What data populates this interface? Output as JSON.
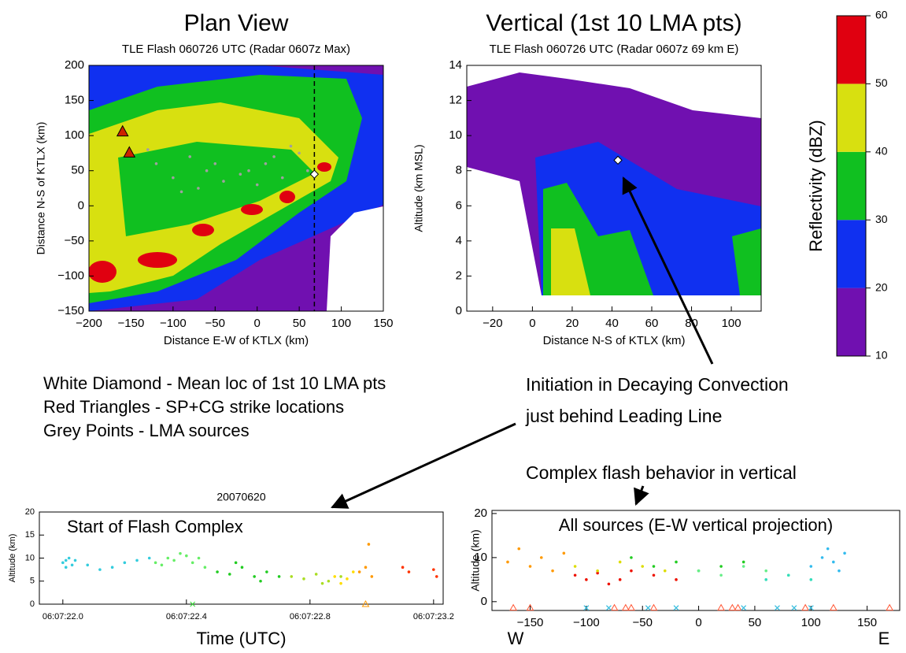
{
  "chart_data": [
    {
      "type": "contour",
      "title": "Plan View",
      "subtitle": "TLE Flash 060726 UTC (Radar 0607z Max)",
      "xlabel": "Distance E-W of KTLX (km)",
      "ylabel": "Distance N-S of KTLX (km)",
      "xlim": [
        -200,
        150
      ],
      "ylim": [
        -150,
        200
      ],
      "xticks": [
        {
          "value": -200,
          "label": "−200"
        },
        {
          "value": -150,
          "label": "−150"
        },
        {
          "value": -100,
          "label": "−100"
        },
        {
          "value": -50,
          "label": "−50"
        },
        0,
        50,
        100,
        150
      ],
      "yticks": [
        {
          "value": -150,
          "label": "−150"
        },
        {
          "value": -100,
          "label": "−100"
        },
        {
          "value": -50,
          "label": "−50"
        },
        0,
        50,
        100,
        150,
        200
      ],
      "section_x": 68,
      "legend": true,
      "series": [
        {
          "name": "White Diamond - Mean loc of 1st 10 LMA pts",
          "color": "#ffffff",
          "marker": "diamond",
          "x": [
            68
          ],
          "values": [
            45
          ]
        },
        {
          "name": "Red Triangles - SP+CG strike locations",
          "color": "#cc2200",
          "marker": "triangle",
          "x": [
            -160,
            -152
          ],
          "values": [
            105,
            75
          ]
        },
        {
          "name": "Grey Points - LMA sources",
          "color": "#a0a0a0",
          "marker": "dot",
          "x": [
            -120,
            -100,
            -80,
            -60,
            -40,
            -20,
            0,
            20,
            40,
            -90,
            -50,
            -10,
            30,
            -130,
            -70,
            10,
            50,
            60
          ],
          "values": [
            60,
            40,
            70,
            50,
            35,
            45,
            30,
            70,
            85,
            20,
            60,
            50,
            40,
            80,
            25,
            60,
            75,
            50
          ]
        }
      ]
    },
    {
      "type": "contour",
      "title": "Vertical (1st 10 LMA pts)",
      "subtitle": "TLE Flash 060726 UTC (Radar 0607z 69 km E)",
      "xlabel": "Distance N-S of KTLX (km)",
      "ylabel": "Altitude (km MSL)",
      "xlim": [
        -33,
        115
      ],
      "ylim": [
        0,
        14
      ],
      "xticks": [
        {
          "value": -20,
          "label": "−20"
        },
        0,
        20,
        40,
        60,
        80,
        100
      ],
      "yticks": [
        0,
        2,
        4,
        6,
        8,
        10,
        12,
        14
      ],
      "series": [
        {
          "color": "#ffffff",
          "marker": "diamond",
          "x": [
            43
          ],
          "values": [
            8.6
          ]
        }
      ]
    },
    {
      "type": "colorbar",
      "label": "Reflectivity (dBZ)",
      "ylim": [
        10,
        60
      ],
      "yticks": [
        10,
        20,
        30,
        40,
        50,
        60
      ],
      "bins": [
        10,
        20,
        30,
        40,
        50,
        60
      ],
      "colors": [
        "#7010b0",
        "#1030f0",
        "#10c020",
        "#d8e010",
        "#e00010"
      ]
    },
    {
      "type": "scatter",
      "title": "20070620",
      "annotation": "Start of Flash Complex",
      "xlabel": "Time (UTC)",
      "ylabel": "Altitude (km)",
      "xlim": [
        21.924,
        23.231
      ],
      "ylim": [
        0,
        20
      ],
      "xticks": [
        {
          "value": 22.0,
          "label": "06:07:22.0"
        },
        {
          "value": 22.4,
          "label": "06:07:22.4"
        },
        {
          "value": 22.8,
          "label": "06:07:22.8"
        },
        {
          "value": 23.2,
          "label": "06:07:23.2"
        }
      ],
      "yticks": [
        0,
        5,
        10,
        15,
        20
      ],
      "series": [
        {
          "color": "#33ccdd",
          "marker": "dot",
          "x": [
            22.0,
            22.01,
            22.02,
            22.04,
            22.08,
            22.12,
            22.16,
            22.2,
            22.24,
            22.28,
            22.01,
            22.03
          ],
          "values": [
            9,
            8,
            10,
            9.5,
            8.5,
            7.5,
            8,
            9,
            9.5,
            10,
            9.5,
            8.5
          ]
        },
        {
          "color": "#66ee66",
          "marker": "dot",
          "x": [
            22.3,
            22.34,
            22.38,
            22.4,
            22.42,
            22.44,
            22.46,
            22.36,
            22.32
          ],
          "values": [
            9,
            10,
            11,
            10.5,
            9,
            10,
            8,
            9.5,
            8.5
          ]
        },
        {
          "color": "#22cc22",
          "marker": "dot",
          "x": [
            22.5,
            22.54,
            22.58,
            22.62,
            22.66,
            22.7,
            22.56,
            22.64
          ],
          "values": [
            7,
            6.5,
            8,
            6,
            7,
            6,
            9,
            5
          ]
        },
        {
          "color": "#aadd22",
          "marker": "dot",
          "x": [
            22.74,
            22.78,
            22.82,
            22.86,
            22.9,
            22.84
          ],
          "values": [
            6,
            5.5,
            6.5,
            5,
            6,
            4.5
          ]
        },
        {
          "color": "#ffdd00",
          "marker": "dot",
          "x": [
            22.88,
            22.92,
            22.94,
            22.9
          ],
          "values": [
            6,
            5.5,
            7,
            4.5
          ]
        },
        {
          "color": "#ff9900",
          "marker": "dot",
          "x": [
            22.96,
            22.98,
            23.0,
            22.99
          ],
          "values": [
            7,
            8,
            6,
            13
          ]
        },
        {
          "color": "#ff3300",
          "marker": "dot",
          "x": [
            23.1,
            23.12,
            23.2,
            23.21
          ],
          "values": [
            8,
            7,
            7.5,
            6
          ]
        },
        {
          "color": "#44dd44",
          "marker": "x",
          "x": [
            22.42
          ],
          "values": [
            0
          ]
        },
        {
          "color": "#ff9900",
          "marker": "triangle-open",
          "x": [
            22.98
          ],
          "values": [
            0
          ]
        }
      ]
    },
    {
      "type": "scatter",
      "annotation": "All sources (E-W vertical projection)",
      "ylabel": "Altitude (km)",
      "west": "W",
      "east": "E",
      "xlim": [
        -184,
        179
      ],
      "ylim": [
        -2,
        20.7
      ],
      "xticks": [
        {
          "value": -150,
          "label": "−150"
        },
        {
          "value": -100,
          "label": "−100"
        },
        {
          "value": -50,
          "label": "−50"
        },
        0,
        50,
        100,
        150
      ],
      "yticks": [
        0,
        10,
        20
      ],
      "series": [
        {
          "color": "#ff9900",
          "marker": "dot",
          "x": [
            -170,
            -160,
            -150,
            -140,
            -130,
            -120
          ],
          "values": [
            9,
            12,
            8,
            10,
            7,
            11
          ]
        },
        {
          "color": "#ee1100",
          "marker": "dot",
          "x": [
            -110,
            -100,
            -90,
            -80,
            -70,
            -60,
            -40,
            -20
          ],
          "values": [
            6,
            5,
            6.5,
            4,
            5,
            7,
            6,
            5
          ]
        },
        {
          "color": "#dddd00",
          "marker": "dot",
          "x": [
            -110,
            -90,
            -70,
            -50,
            -30
          ],
          "values": [
            8,
            7,
            9,
            8,
            7
          ]
        },
        {
          "color": "#22cc22",
          "marker": "dot",
          "x": [
            -60,
            -40,
            -20,
            0,
            20,
            40
          ],
          "values": [
            10,
            8,
            9,
            7,
            8,
            9
          ]
        },
        {
          "color": "#66ee88",
          "marker": "dot",
          "x": [
            0,
            20,
            40,
            60,
            80
          ],
          "values": [
            7,
            6,
            8,
            7,
            6
          ]
        },
        {
          "color": "#33ddbb",
          "marker": "dot",
          "x": [
            60,
            80,
            100
          ],
          "values": [
            5,
            6,
            5
          ]
        },
        {
          "color": "#33bbee",
          "marker": "dot",
          "x": [
            100,
            110,
            115,
            120,
            125,
            130
          ],
          "values": [
            8,
            10,
            12,
            9,
            7,
            11
          ]
        },
        {
          "color": "#ff5533",
          "marker": "triangle-open",
          "x": [
            -165,
            -150,
            -75,
            -65,
            -60,
            -40,
            20,
            30,
            35,
            95,
            120,
            170
          ],
          "values": [
            -1.4,
            -1.4,
            -1.4,
            -1.4,
            -1.4,
            -1.4,
            -1.4,
            -1.4,
            -1.4,
            -1.4,
            -1.4,
            -1.4
          ]
        },
        {
          "color": "#33bbdd",
          "marker": "x",
          "x": [
            -100,
            -80,
            -45,
            -20,
            40,
            70,
            85,
            100
          ],
          "values": [
            -1.4,
            -1.4,
            -1.4,
            -1.4,
            -1.4,
            -1.4,
            -1.4,
            -1.4
          ]
        }
      ]
    }
  ],
  "annotations": {
    "initiation": [
      "Initiation in Decaying Convection",
      "just behind Leading Line"
    ],
    "complex": "Complex flash behavior in vertical"
  }
}
